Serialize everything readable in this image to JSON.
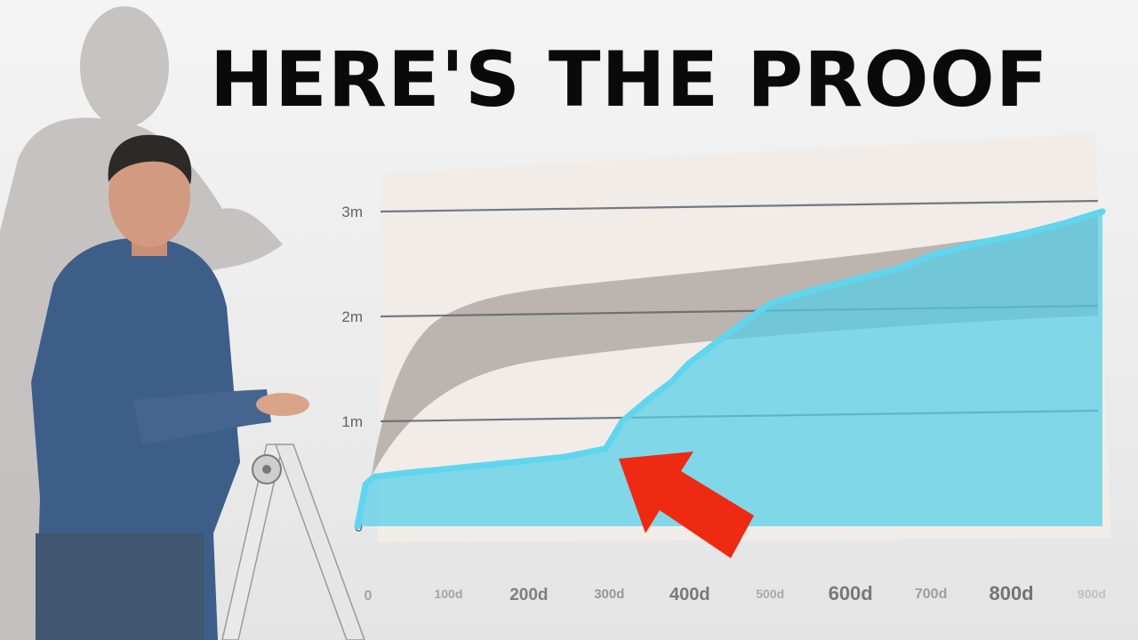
{
  "headline": "HERE'S THE PROOF",
  "colors": {
    "area_fill": "#55cfe8",
    "line": "#5fd6ee",
    "shadow_area": "#a9a19c",
    "gridline": "#5c6670",
    "arrow": "#ef2a12",
    "shirt": "#3e5e8a"
  },
  "chart_data": {
    "type": "area",
    "title": "",
    "xlabel": "",
    "ylabel": "",
    "xlim": [
      0,
      900
    ],
    "ylim": [
      0,
      3000000
    ],
    "y_ticks": [
      "0",
      "1m",
      "2m",
      "3m"
    ],
    "x_ticks": [
      "0",
      "100d",
      "200d",
      "300d",
      "400d",
      "500d",
      "600d",
      "700d",
      "800d",
      "900d"
    ],
    "x": [
      0,
      10,
      20,
      60,
      100,
      150,
      200,
      250,
      300,
      320,
      350,
      380,
      400,
      450,
      500,
      550,
      600,
      650,
      700,
      750,
      800,
      850,
      900
    ],
    "series": [
      {
        "values": [
          0,
          400000,
          470000,
          510000,
          540000,
          580000,
          620000,
          660000,
          740000,
          1000000,
          1200000,
          1380000,
          1550000,
          1850000,
          2130000,
          2250000,
          2350000,
          2450000,
          2600000,
          2700000,
          2780000,
          2880000,
          3000000
        ]
      }
    ],
    "grid": true,
    "annotations": [
      "red arrow pointing at ~310d inflection"
    ]
  }
}
